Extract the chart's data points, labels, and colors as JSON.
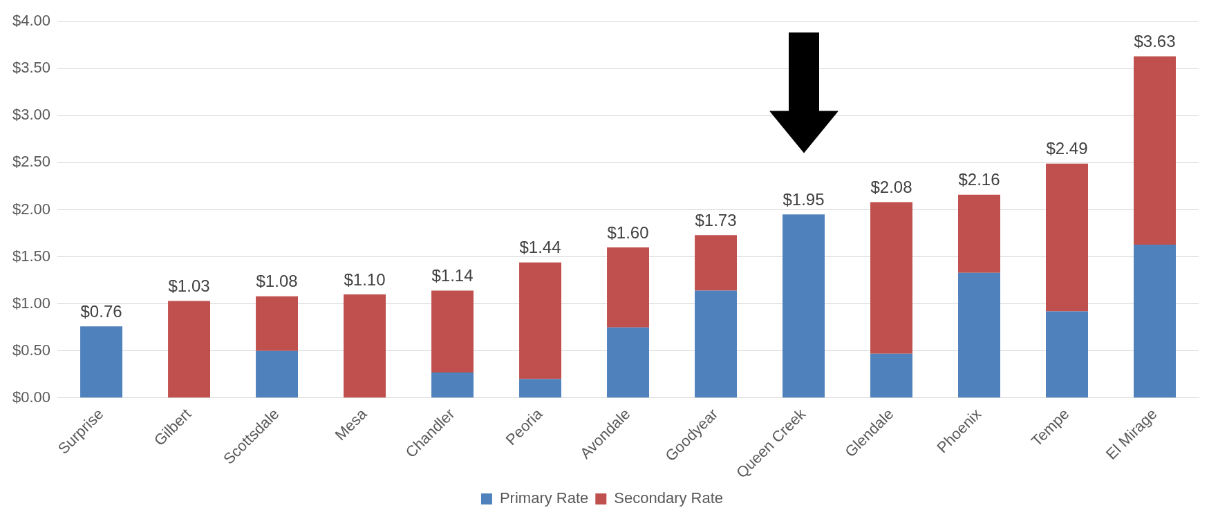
{
  "chart_data": {
    "type": "bar",
    "stacked": true,
    "categories": [
      "Surprise",
      "Gilbert",
      "Scottsdale",
      "Mesa",
      "Chandler",
      "Peoria",
      "Avondale",
      "Goodyear",
      "Queen Creek",
      "Glendale",
      "Phoenix",
      "Tempe",
      "El Mirage"
    ],
    "series": [
      {
        "name": "Primary Rate",
        "color": "#4f81bd",
        "values": [
          0.76,
          0,
          0.5,
          0,
          0.27,
          0.2,
          0.75,
          1.14,
          1.95,
          0.47,
          1.33,
          0.92,
          1.63
        ]
      },
      {
        "name": "Secondary Rate",
        "color": "#c0504d",
        "values": [
          0,
          1.03,
          0.58,
          1.1,
          0.87,
          1.24,
          0.85,
          0.59,
          0,
          1.61,
          0.83,
          1.57,
          2.0
        ]
      }
    ],
    "totals": [
      "$0.76",
      "$1.03",
      "$1.08",
      "$1.10",
      "$1.14",
      "$1.44",
      "$1.60",
      "$1.73",
      "$1.95",
      "$2.08",
      "$2.16",
      "$2.49",
      "$3.63"
    ],
    "ylim": [
      0,
      4
    ],
    "yticks": [
      {
        "value": 0,
        "label": "$0.00"
      },
      {
        "value": 0.5,
        "label": "$0.50"
      },
      {
        "value": 1,
        "label": "$1.00"
      },
      {
        "value": 1.5,
        "label": "$1.50"
      },
      {
        "value": 2,
        "label": "$2.00"
      },
      {
        "value": 2.5,
        "label": "$2.50"
      },
      {
        "value": 3,
        "label": "$3.00"
      },
      {
        "value": 3.5,
        "label": "$3.50"
      },
      {
        "value": 4,
        "label": "$4.00"
      }
    ],
    "grid": "y",
    "legend": "bottom"
  }
}
